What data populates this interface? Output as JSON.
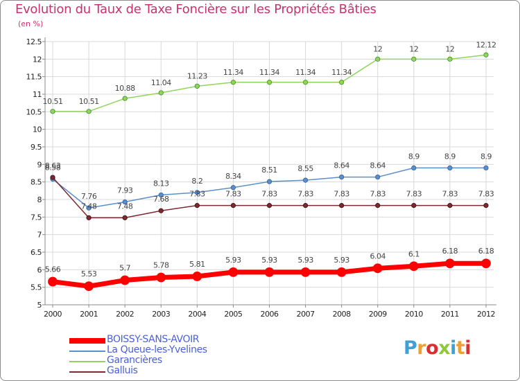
{
  "title": "Evolution du Taux de Taxe Foncière sur les Propriétés Bâties",
  "subtitle": "(en %)",
  "logo_text": "Proxiti",
  "chart_data": {
    "type": "line",
    "title": "Evolution du Taux de Taxe Foncière sur les Propriétés Bâties",
    "ylabel": "(en %)",
    "xlabel": "",
    "ylim": [
      5,
      12.5
    ],
    "y_ticks": [
      "5",
      "5.5",
      "6",
      "6.5",
      "7",
      "7.5",
      "8",
      "8.5",
      "9",
      "9.5",
      "10",
      "10.5",
      "11",
      "11.5",
      "12",
      "12.5"
    ],
    "x": [
      "2000",
      "2001",
      "2002",
      "2003",
      "2004",
      "2005",
      "2006",
      "2007",
      "2008",
      "2009",
      "2010",
      "2011",
      "2012"
    ],
    "grid": true,
    "legend": "bottom-left",
    "series": [
      {
        "name": "BOISSY-SANS-AVOIR",
        "color": "#ff0000",
        "values": [
          5.66,
          5.53,
          5.7,
          5.78,
          5.81,
          5.93,
          5.93,
          5.93,
          5.93,
          6.04,
          6.1,
          6.18,
          6.18
        ],
        "labels": [
          "5.66",
          "5.53",
          "5.7",
          "5.78",
          "5.81",
          "5.93",
          "5.93",
          "5.93",
          "5.93",
          "6.04",
          "6.1",
          "6.18",
          "6.18"
        ]
      },
      {
        "name": "La Queue-les-Yvelines",
        "color": "#5b8fc9",
        "values": [
          8.58,
          7.76,
          7.93,
          8.13,
          8.2,
          8.34,
          8.51,
          8.55,
          8.64,
          8.64,
          8.9,
          8.9,
          8.9
        ],
        "labels": [
          "8.58",
          "7.76",
          "7.93",
          "8.13",
          "8.2",
          "8.34",
          "8.51",
          "8.55",
          "8.64",
          "8.64",
          "8.9",
          "8.9",
          "8.9"
        ]
      },
      {
        "name": "Garancières",
        "color": "#8fd45f",
        "values": [
          10.51,
          10.51,
          10.88,
          11.04,
          11.23,
          11.34,
          11.34,
          11.34,
          11.34,
          12,
          12,
          12,
          12.12
        ],
        "labels": [
          "10.51",
          "10.51",
          "10.88",
          "11.04",
          "11.23",
          "11.34",
          "11.34",
          "11.34",
          "11.34",
          "12",
          "12",
          "12",
          "12.12"
        ]
      },
      {
        "name": "Galluis",
        "color": "#7a2a30",
        "values": [
          8.63,
          7.48,
          7.48,
          7.68,
          7.83,
          7.83,
          7.83,
          7.83,
          7.83,
          7.83,
          7.83,
          7.83,
          7.83
        ],
        "labels": [
          "8.63",
          "7.48",
          "7.48",
          "7.68",
          "7.83",
          "7.83",
          "7.83",
          "7.83",
          "7.83",
          "7.83",
          "7.83",
          "7.83",
          "7.83"
        ]
      }
    ]
  },
  "colors": {
    "title": "#c8326e",
    "legend_text": "#4a5fd8",
    "grid": "#d8d8d8",
    "axis_text": "#222222",
    "value_text": "#444444"
  }
}
